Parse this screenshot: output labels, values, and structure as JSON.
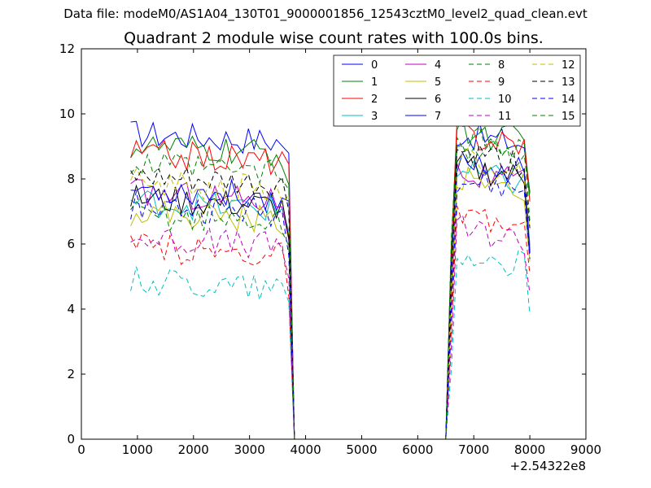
{
  "chart_data": {
    "type": "line",
    "suptitle": "Data file: modeM0/AS1A04_130T01_9000001856_12543cztM0_level2_quad_clean.evt",
    "title": "Quadrant 2 module wise count rates with 100.0s bins.",
    "xlabel": "",
    "ylabel": "",
    "x_offset_label": "+2.54322e8",
    "xlim": [
      0,
      9000
    ],
    "ylim": [
      0,
      12
    ],
    "xticks": [
      0,
      1000,
      2000,
      3000,
      4000,
      5000,
      6000,
      7000,
      8000,
      9000
    ],
    "yticks": [
      0,
      2,
      4,
      6,
      8,
      10,
      12
    ],
    "grid": false,
    "legend": {
      "placement": "top-right",
      "columns": 4
    },
    "series": [
      {
        "name": "0",
        "color": "#0000ff",
        "dash": "solid",
        "base1": 9.4,
        "base2": 9.4
      },
      {
        "name": "1",
        "color": "#008000",
        "dash": "solid",
        "base1": 9.0,
        "base2": 9.5
      },
      {
        "name": "2",
        "color": "#ff0000",
        "dash": "solid",
        "base1": 8.8,
        "base2": 9.4
      },
      {
        "name": "3",
        "color": "#00bfbf",
        "dash": "solid",
        "base1": 7.3,
        "base2": 8.2
      },
      {
        "name": "4",
        "color": "#bf00bf",
        "dash": "solid",
        "base1": 7.6,
        "base2": 8.2
      },
      {
        "name": "5",
        "color": "#bfbf00",
        "dash": "solid",
        "base1": 7.0,
        "base2": 8.0
      },
      {
        "name": "6",
        "color": "#000000",
        "dash": "solid",
        "base1": 7.4,
        "base2": 8.4
      },
      {
        "name": "7",
        "color": "#0000ff",
        "dash": "solid",
        "base1": 7.7,
        "base2": 8.6
      },
      {
        "name": "8",
        "color": "#008000",
        "dash": "dashed",
        "base1": 6.9,
        "base2": 9.0
      },
      {
        "name": "9",
        "color": "#ff0000",
        "dash": "dashed",
        "base1": 5.9,
        "base2": 6.8
      },
      {
        "name": "10",
        "color": "#00bfbf",
        "dash": "dashed",
        "base1": 4.9,
        "base2": 5.7
      },
      {
        "name": "11",
        "color": "#bf00bf",
        "dash": "dashed",
        "base1": 6.2,
        "base2": 6.5
      },
      {
        "name": "12",
        "color": "#bfbf00",
        "dash": "dashed",
        "base1": 7.9,
        "base2": 8.6
      },
      {
        "name": "13",
        "color": "#000000",
        "dash": "dashed",
        "base1": 8.0,
        "base2": 8.8
      },
      {
        "name": "14",
        "color": "#0000ff",
        "dash": "dashed",
        "base1": 7.2,
        "base2": 8.0
      },
      {
        "name": "15",
        "color": "#008000",
        "dash": "dashed",
        "base1": 8.4,
        "base2": 9.3
      }
    ],
    "segments": {
      "x_start": 880,
      "bin": 100,
      "seg1_end": 3600,
      "drop_x": [
        3700,
        3800
      ],
      "zero_x": [
        3800,
        6500
      ],
      "rise_x": [
        6600,
        6700
      ],
      "seg2_start": 6700,
      "seg2_end": 7900,
      "end_x": 8000
    }
  }
}
